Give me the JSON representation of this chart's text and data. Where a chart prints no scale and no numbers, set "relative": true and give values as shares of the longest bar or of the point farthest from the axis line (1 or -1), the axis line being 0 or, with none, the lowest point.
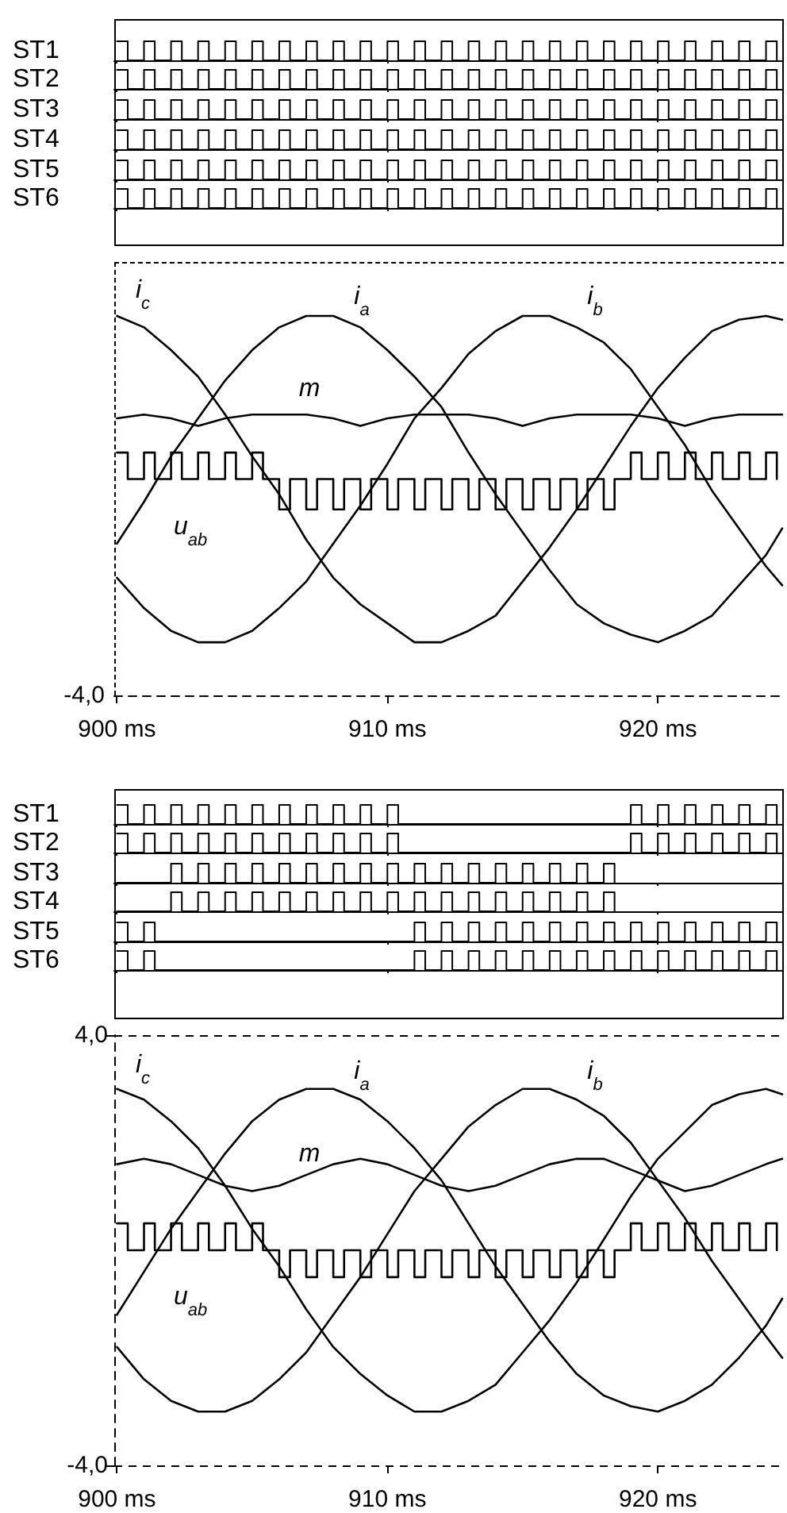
{
  "chart_data": [
    {
      "type": "step",
      "relative": true,
      "ylabel": "ST1",
      "color": "#000000",
      "xlim": [
        899.9,
        924.6
      ],
      "tick_labels": false,
      "x": [
        900,
        900.4,
        901,
        901.4,
        902,
        902.4,
        903,
        903.4,
        904,
        904.4,
        905,
        905.4,
        906,
        906.4,
        907,
        907.4,
        908,
        908.4,
        909,
        909.4,
        910,
        910.4,
        911,
        911.4,
        912,
        912.4,
        913,
        913.4,
        914,
        914.4,
        915,
        915.4,
        916,
        916.4,
        917,
        917.4,
        918,
        918.4,
        919,
        919.4,
        920,
        920.4,
        921,
        921.4,
        922,
        922.4,
        923,
        923.4,
        924,
        924.4
      ],
      "values": [
        1,
        0,
        1,
        0,
        1,
        0,
        1,
        0,
        1,
        0,
        1,
        0,
        1,
        0,
        1,
        0,
        1,
        0,
        1,
        0,
        1,
        0,
        1,
        0,
        1,
        0,
        1,
        0,
        1,
        0,
        1,
        0,
        1,
        0,
        1,
        0,
        1,
        0,
        1,
        0,
        1,
        0,
        1,
        0,
        1,
        0,
        1,
        0,
        1,
        0
      ]
    },
    {
      "type": "step",
      "relative": true,
      "ylabel": "ST2",
      "color": "#000000",
      "xlim": [
        899.9,
        924.6
      ],
      "tick_labels": false,
      "x": [
        900,
        900.4,
        901,
        901.4,
        902,
        902.4,
        903,
        903.4,
        904,
        904.4,
        905,
        905.4,
        906,
        906.4,
        907,
        907.4,
        908,
        908.4,
        909,
        909.4,
        910,
        910.4,
        911,
        911.4,
        912,
        912.4,
        913,
        913.4,
        914,
        914.4,
        915,
        915.4,
        916,
        916.4,
        917,
        917.4,
        918,
        918.4,
        919,
        919.4,
        920,
        920.4,
        921,
        921.4,
        922,
        922.4,
        923,
        923.4,
        924,
        924.4
      ],
      "values": [
        1,
        0,
        1,
        0,
        1,
        0,
        1,
        0,
        1,
        0,
        1,
        0,
        1,
        0,
        1,
        0,
        1,
        0,
        1,
        0,
        1,
        0,
        1,
        0,
        1,
        0,
        1,
        0,
        1,
        0,
        1,
        0,
        1,
        0,
        1,
        0,
        1,
        0,
        1,
        0,
        1,
        0,
        1,
        0,
        1,
        0,
        1,
        0,
        1,
        0
      ]
    },
    {
      "type": "step",
      "relative": true,
      "ylabel": "ST3",
      "color": "#000000",
      "xlim": [
        899.9,
        924.6
      ],
      "tick_labels": false,
      "x": [
        900,
        900.4,
        901,
        901.4,
        902,
        902.4,
        903,
        903.4,
        904,
        904.4,
        905,
        905.4,
        906,
        906.4,
        907,
        907.4,
        908,
        908.4,
        909,
        909.4,
        910,
        910.4,
        911,
        911.4,
        912,
        912.4,
        913,
        913.4,
        914,
        914.4,
        915,
        915.4,
        916,
        916.4,
        917,
        917.4,
        918,
        918.4,
        919,
        919.4,
        920,
        920.4,
        921,
        921.4,
        922,
        922.4,
        923,
        923.4,
        924,
        924.4
      ],
      "values": [
        1,
        0,
        1,
        0,
        1,
        0,
        1,
        0,
        1,
        0,
        1,
        0,
        1,
        0,
        1,
        0,
        1,
        0,
        1,
        0,
        1,
        0,
        1,
        0,
        1,
        0,
        1,
        0,
        1,
        0,
        1,
        0,
        1,
        0,
        1,
        0,
        1,
        0,
        1,
        0,
        1,
        0,
        1,
        0,
        1,
        0,
        1,
        0,
        1,
        0
      ]
    },
    {
      "type": "step",
      "relative": true,
      "ylabel": "ST4",
      "color": "#000000",
      "xlim": [
        899.9,
        924.6
      ],
      "tick_labels": false,
      "x": [
        900,
        900.4,
        901,
        901.4,
        902,
        902.4,
        903,
        903.4,
        904,
        904.4,
        905,
        905.4,
        906,
        906.4,
        907,
        907.4,
        908,
        908.4,
        909,
        909.4,
        910,
        910.4,
        911,
        911.4,
        912,
        912.4,
        913,
        913.4,
        914,
        914.4,
        915,
        915.4,
        916,
        916.4,
        917,
        917.4,
        918,
        918.4,
        919,
        919.4,
        920,
        920.4,
        921,
        921.4,
        922,
        922.4,
        923,
        923.4,
        924,
        924.4
      ],
      "values": [
        1,
        0,
        1,
        0,
        1,
        0,
        1,
        0,
        1,
        0,
        1,
        0,
        1,
        0,
        1,
        0,
        1,
        0,
        1,
        0,
        1,
        0,
        1,
        0,
        1,
        0,
        1,
        0,
        1,
        0,
        1,
        0,
        1,
        0,
        1,
        0,
        1,
        0,
        1,
        0,
        1,
        0,
        1,
        0,
        1,
        0,
        1,
        0,
        1,
        0
      ]
    },
    {
      "type": "step",
      "relative": true,
      "ylabel": "ST5",
      "color": "#000000",
      "xlim": [
        899.9,
        924.6
      ],
      "tick_labels": false,
      "x": [
        900,
        900.4,
        901,
        901.4,
        902,
        902.4,
        903,
        903.4,
        904,
        904.4,
        905,
        905.4,
        906,
        906.4,
        907,
        907.4,
        908,
        908.4,
        909,
        909.4,
        910,
        910.4,
        911,
        911.4,
        912,
        912.4,
        913,
        913.4,
        914,
        914.4,
        915,
        915.4,
        916,
        916.4,
        917,
        917.4,
        918,
        918.4,
        919,
        919.4,
        920,
        920.4,
        921,
        921.4,
        922,
        922.4,
        923,
        923.4,
        924,
        924.4
      ],
      "values": [
        1,
        0,
        1,
        0,
        1,
        0,
        1,
        0,
        1,
        0,
        1,
        0,
        1,
        0,
        1,
        0,
        1,
        0,
        1,
        0,
        1,
        0,
        1,
        0,
        1,
        0,
        1,
        0,
        1,
        0,
        1,
        0,
        1,
        0,
        1,
        0,
        1,
        0,
        1,
        0,
        1,
        0,
        1,
        0,
        1,
        0,
        1,
        0,
        1,
        0
      ]
    },
    {
      "type": "step",
      "relative": true,
      "ylabel": "ST6",
      "color": "#000000",
      "xlim": [
        899.9,
        924.6
      ],
      "tick_labels": false,
      "x": [
        900,
        900.4,
        901,
        901.4,
        902,
        902.4,
        903,
        903.4,
        904,
        904.4,
        905,
        905.4,
        906,
        906.4,
        907,
        907.4,
        908,
        908.4,
        909,
        909.4,
        910,
        910.4,
        911,
        911.4,
        912,
        912.4,
        913,
        913.4,
        914,
        914.4,
        915,
        915.4,
        916,
        916.4,
        917,
        917.4,
        918,
        918.4,
        919,
        919.4,
        920,
        920.4,
        921,
        921.4,
        922,
        922.4,
        923,
        923.4,
        924,
        924.4
      ],
      "values": [
        1,
        0,
        1,
        0,
        1,
        0,
        1,
        0,
        1,
        0,
        1,
        0,
        1,
        0,
        1,
        0,
        1,
        0,
        1,
        0,
        1,
        0,
        1,
        0,
        1,
        0,
        1,
        0,
        1,
        0,
        1,
        0,
        1,
        0,
        1,
        0,
        1,
        0,
        1,
        0,
        1,
        0,
        1,
        0,
        1,
        0,
        1,
        0,
        1,
        0
      ]
    },
    {
      "type": "line",
      "relative": true,
      "xlim": [
        899.9,
        924.6
      ],
      "xticks": [
        {
          "value": 900,
          "label": "900 ms"
        },
        {
          "value": 910,
          "label": "910 ms"
        },
        {
          "value": 920,
          "label": "920 ms"
        }
      ],
      "annotations": [
        "-4,0"
      ],
      "x": [
        900,
        901,
        902,
        903,
        904,
        905,
        906,
        907,
        908,
        909,
        910,
        911,
        912,
        913,
        914,
        915,
        916,
        917,
        918,
        919,
        920,
        921,
        922,
        923,
        924,
        924.6
      ],
      "series": [
        {
          "name": "i$_{a}$",
          "color": "#000000",
          "values": [
            0.4,
            0.51,
            0.63,
            0.73,
            0.83,
            0.91,
            0.97,
            1,
            1,
            0.97,
            0.91,
            0.84,
            0.76,
            0.64,
            0.53,
            0.43,
            0.33,
            0.24,
            0.19,
            0.16,
            0.14,
            0.17,
            0.21,
            0.29,
            0.37,
            0.44
          ]
        },
        {
          "name": "i$_{b}$",
          "color": "#000000",
          "values": [
            0.31,
            0.23,
            0.17,
            0.14,
            0.14,
            0.17,
            0.23,
            0.3,
            0.4,
            0.5,
            0.61,
            0.73,
            0.81,
            0.9,
            0.96,
            1,
            1,
            0.97,
            0.93,
            0.86,
            0.76,
            0.66,
            0.54,
            0.44,
            0.34,
            0.29
          ]
        },
        {
          "name": "i$_{c}$",
          "color": "#000000",
          "values": [
            1,
            0.97,
            0.91,
            0.84,
            0.74,
            0.63,
            0.53,
            0.41,
            0.31,
            0.24,
            0.19,
            0.14,
            0.14,
            0.17,
            0.21,
            0.3,
            0.39,
            0.49,
            0.6,
            0.71,
            0.81,
            0.89,
            0.96,
            0.99,
            1,
            0.99
          ]
        },
        {
          "name": "m",
          "color": "#000000",
          "values": [
            0.73,
            0.74,
            0.73,
            0.71,
            0.73,
            0.74,
            0.74,
            0.74,
            0.73,
            0.71,
            0.73,
            0.74,
            0.74,
            0.74,
            0.73,
            0.71,
            0.73,
            0.74,
            0.74,
            0.74,
            0.73,
            0.71,
            0.73,
            0.74,
            0.74,
            0.74
          ]
        },
        {
          "name": "u$_{ab}$",
          "type": "step",
          "color": "#000000",
          "x": [
            900,
            900.4,
            901,
            901.4,
            902,
            902.4,
            903,
            903.4,
            904,
            904.4,
            905,
            905.4,
            906,
            906.4,
            907,
            907.4,
            908,
            908.4,
            909,
            909.4,
            910,
            910.4,
            911,
            911.4,
            912,
            912.4,
            913,
            913.4,
            914,
            914.4,
            915,
            915.4,
            916,
            916.4,
            917,
            917.4,
            918,
            918.4,
            919,
            919.4,
            920,
            920.4,
            921,
            921.4,
            922,
            922.4,
            923,
            923.4,
            924,
            924.4
          ],
          "values": [
            0.64,
            0.57,
            0.64,
            0.57,
            0.64,
            0.57,
            0.64,
            0.57,
            0.64,
            0.57,
            0.64,
            0.57,
            0.49,
            0.57,
            0.49,
            0.57,
            0.49,
            0.57,
            0.49,
            0.57,
            0.49,
            0.57,
            0.49,
            0.57,
            0.49,
            0.57,
            0.49,
            0.57,
            0.49,
            0.57,
            0.49,
            0.57,
            0.49,
            0.57,
            0.49,
            0.57,
            0.49,
            0.57,
            0.64,
            0.57,
            0.64,
            0.57,
            0.64,
            0.57,
            0.64,
            0.57,
            0.64,
            0.57,
            0.64,
            0.57
          ]
        }
      ]
    },
    {
      "type": "step",
      "relative": true,
      "ylabel": "ST1",
      "color": "#000000",
      "xlim": [
        899.9,
        924.6
      ],
      "tick_labels": false,
      "x": [
        900,
        900.4,
        901,
        901.4,
        902,
        902.4,
        903,
        903.4,
        904,
        904.4,
        905,
        905.4,
        906,
        906.4,
        907,
        907.4,
        908,
        908.4,
        909,
        909.4,
        910,
        910.4,
        919,
        919.4,
        920,
        920.4,
        921,
        921.4,
        922,
        922.4,
        923,
        923.4,
        924,
        924.4
      ],
      "values": [
        1,
        0,
        1,
        0,
        1,
        0,
        1,
        0,
        1,
        0,
        1,
        0,
        1,
        0,
        1,
        0,
        1,
        0,
        1,
        0,
        1,
        0,
        1,
        0,
        1,
        0,
        1,
        0,
        1,
        0,
        1,
        0,
        1,
        0
      ]
    },
    {
      "type": "step",
      "relative": true,
      "ylabel": "ST2",
      "color": "#000000",
      "xlim": [
        899.9,
        924.6
      ],
      "tick_labels": false,
      "x": [
        900,
        900.4,
        901,
        901.4,
        902,
        902.4,
        903,
        903.4,
        904,
        904.4,
        905,
        905.4,
        906,
        906.4,
        907,
        907.4,
        908,
        908.4,
        909,
        909.4,
        910,
        910.4,
        919,
        919.4,
        920,
        920.4,
        921,
        921.4,
        922,
        922.4,
        923,
        923.4,
        924,
        924.4
      ],
      "values": [
        1,
        0,
        1,
        0,
        1,
        0,
        1,
        0,
        1,
        0,
        1,
        0,
        1,
        0,
        1,
        0,
        1,
        0,
        1,
        0,
        1,
        0,
        1,
        0,
        1,
        0,
        1,
        0,
        1,
        0,
        1,
        0,
        1,
        0
      ]
    },
    {
      "type": "step",
      "relative": true,
      "ylabel": "ST3",
      "color": "#000000",
      "xlim": [
        899.9,
        924.6
      ],
      "tick_labels": false,
      "x": [
        900,
        902,
        902.4,
        903,
        903.4,
        904,
        904.4,
        905,
        905.4,
        906,
        906.4,
        907,
        907.4,
        908,
        908.4,
        909,
        909.4,
        910,
        910.4,
        911,
        911.4,
        912,
        912.4,
        913,
        913.4,
        914,
        914.4,
        915,
        915.4,
        916,
        916.4,
        917,
        917.4,
        918,
        918.4
      ],
      "values": [
        0,
        1,
        0,
        1,
        0,
        1,
        0,
        1,
        0,
        1,
        0,
        1,
        0,
        1,
        0,
        1,
        0,
        1,
        0,
        1,
        0,
        1,
        0,
        1,
        0,
        1,
        0,
        1,
        0,
        1,
        0,
        1,
        0,
        1,
        0
      ]
    },
    {
      "type": "step",
      "relative": true,
      "ylabel": "ST4",
      "color": "#000000",
      "xlim": [
        899.9,
        924.6
      ],
      "tick_labels": false,
      "x": [
        900,
        902,
        902.4,
        903,
        903.4,
        904,
        904.4,
        905,
        905.4,
        906,
        906.4,
        907,
        907.4,
        908,
        908.4,
        909,
        909.4,
        910,
        910.4,
        911,
        911.4,
        912,
        912.4,
        913,
        913.4,
        914,
        914.4,
        915,
        915.4,
        916,
        916.4,
        917,
        917.4,
        918,
        918.4
      ],
      "values": [
        0,
        1,
        0,
        1,
        0,
        1,
        0,
        1,
        0,
        1,
        0,
        1,
        0,
        1,
        0,
        1,
        0,
        1,
        0,
        1,
        0,
        1,
        0,
        1,
        0,
        1,
        0,
        1,
        0,
        1,
        0,
        1,
        0,
        1,
        0
      ]
    },
    {
      "type": "step",
      "relative": true,
      "ylabel": "ST5",
      "color": "#000000",
      "xlim": [
        899.9,
        924.6
      ],
      "tick_labels": false,
      "x": [
        900,
        900.4,
        901,
        901.4,
        911,
        911.4,
        912,
        912.4,
        913,
        913.4,
        914,
        914.4,
        915,
        915.4,
        916,
        916.4,
        917,
        917.4,
        918,
        918.4,
        919,
        919.4,
        920,
        920.4,
        921,
        921.4,
        922,
        922.4,
        923,
        923.4,
        924,
        924.4
      ],
      "values": [
        1,
        0,
        1,
        0,
        1,
        0,
        1,
        0,
        1,
        0,
        1,
        0,
        1,
        0,
        1,
        0,
        1,
        0,
        1,
        0,
        1,
        0,
        1,
        0,
        1,
        0,
        1,
        0,
        1,
        0,
        1,
        0
      ]
    },
    {
      "type": "step",
      "relative": true,
      "ylabel": "ST6",
      "color": "#000000",
      "xlim": [
        899.9,
        924.6
      ],
      "tick_labels": false,
      "x": [
        900,
        900.4,
        901,
        901.4,
        911,
        911.4,
        912,
        912.4,
        913,
        913.4,
        914,
        914.4,
        915,
        915.4,
        916,
        916.4,
        917,
        917.4,
        918,
        918.4,
        919,
        919.4,
        920,
        920.4,
        921,
        921.4,
        922,
        922.4,
        923,
        923.4,
        924,
        924.4
      ],
      "values": [
        1,
        0,
        1,
        0,
        1,
        0,
        1,
        0,
        1,
        0,
        1,
        0,
        1,
        0,
        1,
        0,
        1,
        0,
        1,
        0,
        1,
        0,
        1,
        0,
        1,
        0,
        1,
        0,
        1,
        0,
        1,
        0
      ]
    },
    {
      "type": "line",
      "xlim": [
        899.9,
        924.6
      ],
      "ylim": [
        -4,
        4
      ],
      "xticks": [
        {
          "value": 900,
          "label": "900 ms"
        },
        {
          "value": 910,
          "label": "910 ms"
        },
        {
          "value": 920,
          "label": "920 ms"
        }
      ],
      "yticks": [
        {
          "value": -4,
          "label": "-4,0"
        },
        {
          "value": 4,
          "label": "4,0"
        }
      ],
      "grid": "y",
      "x": [
        900,
        901,
        902,
        903,
        904,
        905,
        906,
        907,
        908,
        909,
        910,
        911,
        912,
        913,
        914,
        915,
        916,
        917,
        918,
        919,
        920,
        921,
        922,
        923,
        924,
        924.6
      ],
      "series": [
        {
          "name": "i$_{a}$",
          "color": "#000000",
          "values": [
            -1.2,
            -0.4,
            0.4,
            1.1,
            1.8,
            2.4,
            2.8,
            3.0,
            3.0,
            2.8,
            2.4,
            1.9,
            1.3,
            0.5,
            -0.3,
            -1.0,
            -1.7,
            -2.3,
            -2.7,
            -2.9,
            -3.0,
            -2.8,
            -2.5,
            -2.0,
            -1.4,
            -0.9
          ]
        },
        {
          "name": "i$_{b}$",
          "color": "#000000",
          "values": [
            -1.8,
            -2.4,
            -2.8,
            -3.0,
            -3.0,
            -2.8,
            -2.4,
            -1.9,
            -1.2,
            -0.5,
            0.3,
            1.1,
            1.7,
            2.3,
            2.7,
            3.0,
            3.0,
            2.8,
            2.5,
            2.0,
            1.3,
            0.6,
            -0.2,
            -0.9,
            -1.6,
            -2.0
          ]
        },
        {
          "name": "i$_{c}$",
          "color": "#000000",
          "values": [
            3.0,
            2.8,
            2.4,
            1.9,
            1.2,
            0.4,
            -0.3,
            -1.1,
            -1.8,
            -2.3,
            -2.7,
            -3.0,
            -3.0,
            -2.8,
            -2.5,
            -1.9,
            -1.3,
            -0.6,
            0.2,
            1.0,
            1.7,
            2.2,
            2.7,
            2.9,
            3.0,
            2.9
          ]
        },
        {
          "name": "m",
          "color": "#000000",
          "values": [
            1.6,
            1.7,
            1.6,
            1.4,
            1.2,
            1.1,
            1.2,
            1.4,
            1.6,
            1.7,
            1.6,
            1.4,
            1.2,
            1.1,
            1.2,
            1.4,
            1.6,
            1.7,
            1.7,
            1.5,
            1.3,
            1.1,
            1.2,
            1.4,
            1.6,
            1.7
          ]
        },
        {
          "name": "u$_{ab}$",
          "type": "step",
          "color": "#000000",
          "x": [
            900,
            900.4,
            901,
            901.4,
            902,
            902.4,
            903,
            903.4,
            904,
            904.4,
            905,
            905.4,
            906,
            906.4,
            907,
            907.4,
            908,
            908.4,
            909,
            909.4,
            910,
            910.4,
            911,
            911.4,
            912,
            912.4,
            913,
            913.4,
            914,
            914.4,
            915,
            915.4,
            916,
            916.4,
            917,
            917.4,
            918,
            918.4,
            919,
            919.4,
            920,
            920.4,
            921,
            921.4,
            922,
            922.4,
            923,
            923.4,
            924,
            924.4
          ],
          "values": [
            0.5,
            0,
            0.5,
            0,
            0.5,
            0,
            0.5,
            0,
            0.5,
            0,
            0.5,
            0,
            -0.5,
            0,
            -0.5,
            0,
            -0.5,
            0,
            -0.5,
            0,
            -0.5,
            0,
            -0.5,
            0,
            -0.5,
            0,
            -0.5,
            0,
            -0.5,
            0,
            -0.5,
            0,
            -0.5,
            0,
            -0.5,
            0,
            -0.5,
            0,
            0.5,
            0,
            0.5,
            0,
            0.5,
            0,
            0.5,
            0,
            0.5,
            0,
            0.5,
            0
          ]
        }
      ]
    }
  ]
}
